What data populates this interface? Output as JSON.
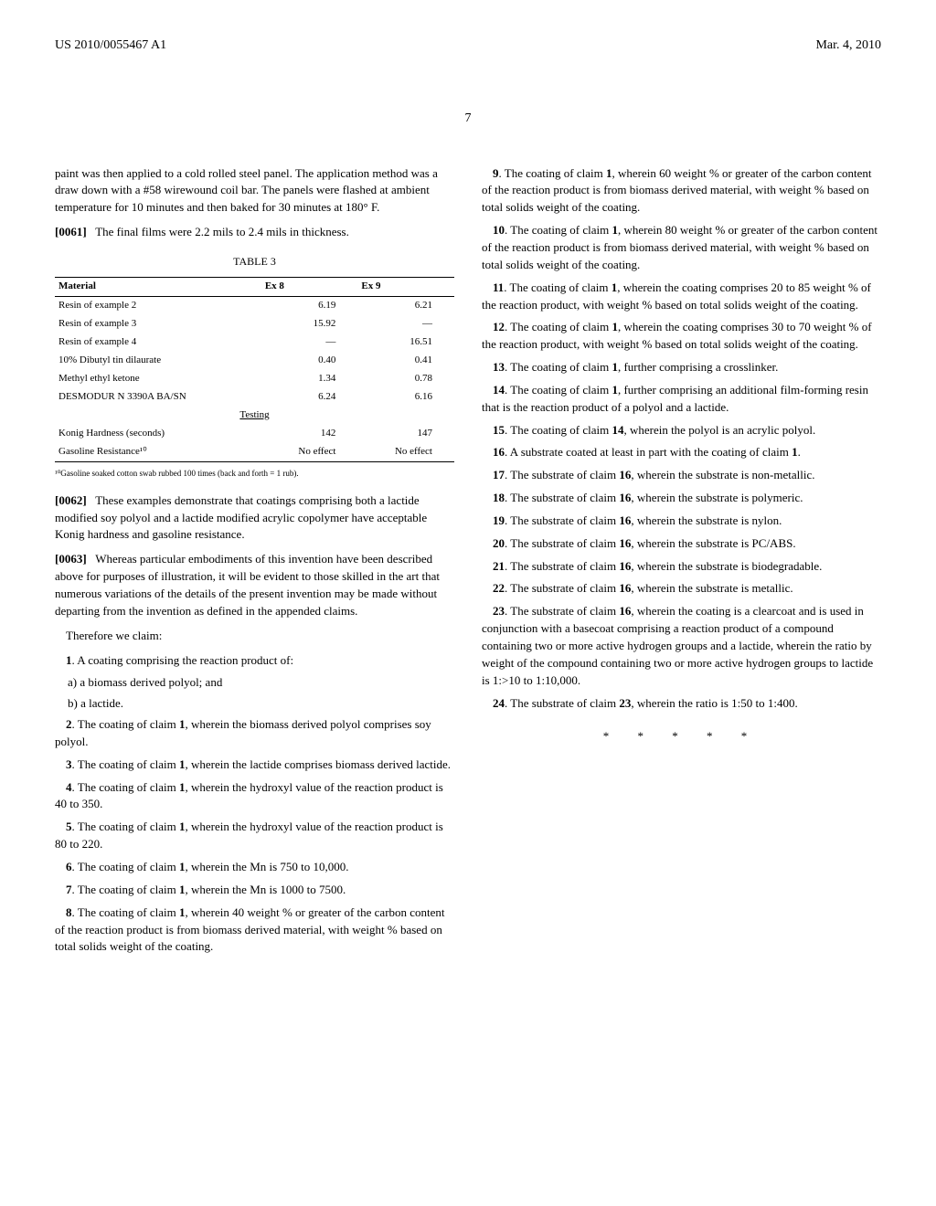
{
  "header": {
    "pub_number": "US 2010/0055467 A1",
    "date": "Mar. 4, 2010"
  },
  "page_number": "7",
  "left": {
    "intro1": "paint was then applied to a cold rolled steel panel. The application method was a draw down with a #58 wirewound coil bar. The panels were flashed at ambient temperature for 10 minutes and then baked for 30 minutes at 180° F.",
    "intro2_label": "[0061]",
    "intro2": "The final films were 2.2 mils to 2.4 mils in thickness.",
    "table_title": "TABLE 3",
    "table": {
      "headers": [
        "Material",
        "Ex 8",
        "Ex 9"
      ],
      "rows": [
        [
          "Resin of example 2",
          "6.19",
          "6.21"
        ],
        [
          "Resin of example 3",
          "15.92",
          "—"
        ],
        [
          "Resin of example 4",
          "—",
          "16.51"
        ],
        [
          "10% Dibutyl tin dilaurate",
          "0.40",
          "0.41"
        ],
        [
          "Methyl ethyl ketone",
          "1.34",
          "0.78"
        ],
        [
          "DESMODUR N 3390A BA/SN",
          "6.24",
          "6.16"
        ]
      ],
      "testing_label": "Testing",
      "testing_rows": [
        [
          "Konig Hardness (seconds)",
          "142",
          "147"
        ],
        [
          "Gasoline Resistance¹⁰",
          "No effect",
          "No effect"
        ]
      ]
    },
    "footnote": "¹⁰Gasoline soaked cotton swab rubbed 100 times (back and forth = 1 rub).",
    "p0062_label": "[0062]",
    "p0062": "These examples demonstrate that coatings comprising both a lactide modified soy polyol and a lactide modified acrylic copolymer have acceptable Konig hardness and gasoline resistance.",
    "p0063_label": "[0063]",
    "p0063": "Whereas particular embodiments of this invention have been described above for purposes of illustration, it will be evident to those skilled in the art that numerous variations of the details of the present invention may be made without departing from the invention as defined in the appended claims.",
    "therefore": "Therefore we claim:",
    "claim1": "1. A coating comprising the reaction product of:",
    "claim1a": "a) a biomass derived polyol; and",
    "claim1b": "b) a lactide.",
    "claim2": "2. The coating of claim 1, wherein the biomass derived polyol comprises soy polyol.",
    "claim3": "3. The coating of claim 1, wherein the lactide comprises biomass derived lactide.",
    "claim4": "4. The coating of claim 1, wherein the hydroxyl value of the reaction product is 40 to 350.",
    "claim5": "5. The coating of claim 1, wherein the hydroxyl value of the reaction product is 80 to 220.",
    "claim6": "6. The coating of claim 1, wherein the Mn is 750 to 10,000.",
    "claim7": "7. The coating of claim 1, wherein the Mn is 1000 to 7500.",
    "claim8": "8. The coating of claim 1, wherein 40 weight % or greater of the carbon content of the reaction product is from biomass derived material, with weight % based on total solids weight of the coating."
  },
  "right": {
    "claim9": "9. The coating of claim 1, wherein 60 weight % or greater of the carbon content of the reaction product is from biomass derived material, with weight % based on total solids weight of the coating.",
    "claim10": "10. The coating of claim 1, wherein 80 weight % or greater of the carbon content of the reaction product is from biomass derived material, with weight % based on total solids weight of the coating.",
    "claim11": "11. The coating of claim 1, wherein the coating comprises 20 to 85 weight % of the reaction product, with weight % based on total solids weight of the coating.",
    "claim12": "12. The coating of claim 1, wherein the coating comprises 30 to 70 weight % of the reaction product, with weight % based on total solids weight of the coating.",
    "claim13": "13. The coating of claim 1, further comprising a crosslinker.",
    "claim14": "14. The coating of claim 1, further comprising an additional film-forming resin that is the reaction product of a polyol and a lactide.",
    "claim15": "15. The coating of claim 14, wherein the polyol is an acrylic polyol.",
    "claim16": "16. A substrate coated at least in part with the coating of claim 1.",
    "claim17": "17. The substrate of claim 16, wherein the substrate is non-metallic.",
    "claim18": "18. The substrate of claim 16, wherein the substrate is polymeric.",
    "claim19": "19. The substrate of claim 16, wherein the substrate is nylon.",
    "claim20": "20. The substrate of claim 16, wherein the substrate is PC/ABS.",
    "claim21": "21. The substrate of claim 16, wherein the substrate is biodegradable.",
    "claim22": "22. The substrate of claim 16, wherein the substrate is metallic.",
    "claim23": "23. The substrate of claim 16, wherein the coating is a clearcoat and is used in conjunction with a basecoat comprising a reaction product of a compound containing two or more active hydrogen groups and a lactide, wherein the ratio by weight of the compound containing two or more active hydrogen groups to lactide is 1:>10 to 1:10,000.",
    "claim24": "24. The substrate of claim 23, wherein the ratio is 1:50 to 1:400.",
    "stars": "* * * * *"
  }
}
